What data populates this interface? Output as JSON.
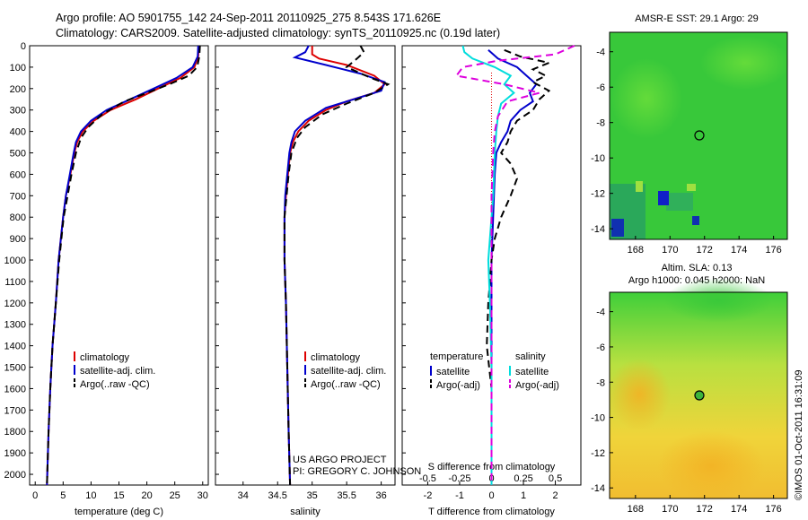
{
  "title": {
    "line1": "Argo profile: AO 5901755_142 24-Sep-2011 20110925_275 8.543S 171.626E",
    "line2": "Climatology: CARS2009. Satellite-adjusted climatology: synTS_20110925.nc (0.19d later)"
  },
  "credits": {
    "line1": "US ARGO PROJECT",
    "line2": "PI: GREGORY C. JOHNSON"
  },
  "stamp": "©IMOS 01-Oct-2011 16:31:09",
  "colors": {
    "climatology": "#dd0000",
    "satellite": "#0000cc",
    "argo": "#000000",
    "t_satellite": "#0000cc",
    "s_satellite": "#00dddd",
    "s_argo": "#dd00dd"
  },
  "chart_data": [
    {
      "type": "line",
      "id": "temperature",
      "xlabel": "temperature (deg C)",
      "ylabel": "",
      "xlim": [
        -1,
        31
      ],
      "ylim": [
        2050,
        0
      ],
      "xticks": [
        0,
        5,
        10,
        15,
        20,
        25,
        30
      ],
      "yticks": [
        0,
        100,
        200,
        300,
        400,
        500,
        600,
        700,
        800,
        900,
        1000,
        1100,
        1200,
        1300,
        1400,
        1500,
        1600,
        1700,
        1800,
        1900,
        2000
      ],
      "legend": [
        "climatology",
        "satellite-adj. clim.",
        "Argo(..raw -QC)"
      ],
      "series": [
        {
          "name": "climatology",
          "style": "solid",
          "color": "#dd0000",
          "points": [
            [
              29.3,
              0
            ],
            [
              29.2,
              50
            ],
            [
              28.5,
              100
            ],
            [
              26,
              150
            ],
            [
              22,
              200
            ],
            [
              18,
              250
            ],
            [
              13.5,
              300
            ],
            [
              10.5,
              350
            ],
            [
              8.5,
              400
            ],
            [
              7.5,
              450
            ],
            [
              7,
              500
            ],
            [
              6.3,
              600
            ],
            [
              5.5,
              700
            ],
            [
              5,
              800
            ],
            [
              4.6,
              900
            ],
            [
              4.2,
              1000
            ],
            [
              3.7,
              1200
            ],
            [
              3.1,
              1400
            ],
            [
              2.7,
              1600
            ],
            [
              2.4,
              1800
            ],
            [
              2.1,
              2050
            ]
          ]
        },
        {
          "name": "satellite-adj. clim.",
          "style": "solid",
          "color": "#0000cc",
          "points": [
            [
              29.2,
              0
            ],
            [
              29.1,
              50
            ],
            [
              28.2,
              100
            ],
            [
              25.3,
              150
            ],
            [
              21.2,
              200
            ],
            [
              17,
              250
            ],
            [
              12.8,
              300
            ],
            [
              10,
              350
            ],
            [
              8.2,
              400
            ],
            [
              7.3,
              450
            ],
            [
              6.9,
              500
            ],
            [
              6.2,
              600
            ],
            [
              5.5,
              700
            ],
            [
              5,
              800
            ],
            [
              4.6,
              900
            ],
            [
              4.2,
              1000
            ],
            [
              3.7,
              1200
            ],
            [
              3.1,
              1400
            ],
            [
              2.7,
              1600
            ],
            [
              2.4,
              1800
            ],
            [
              2.1,
              2050
            ]
          ]
        },
        {
          "name": "Argo(..raw -QC)",
          "style": "dash",
          "color": "#000000",
          "points": [
            [
              29.5,
              0
            ],
            [
              29.4,
              50
            ],
            [
              29,
              100
            ],
            [
              27.5,
              140
            ],
            [
              24,
              180
            ],
            [
              20,
              220
            ],
            [
              16,
              260
            ],
            [
              12,
              320
            ],
            [
              9.5,
              380
            ],
            [
              8.2,
              430
            ],
            [
              7.3,
              500
            ],
            [
              6.5,
              600
            ],
            [
              5.8,
              700
            ],
            [
              5.1,
              800
            ],
            [
              4.7,
              900
            ],
            [
              4.3,
              1000
            ],
            [
              3.7,
              1200
            ],
            [
              3.1,
              1400
            ],
            [
              2.7,
              1600
            ],
            [
              2.4,
              1800
            ],
            [
              2.1,
              2050
            ]
          ]
        }
      ]
    },
    {
      "type": "line",
      "id": "salinity",
      "xlabel": "salinity",
      "ylabel": "",
      "xlim": [
        33.6,
        36.2
      ],
      "ylim": [
        2050,
        0
      ],
      "xticks": [
        34,
        34.5,
        35,
        35.5,
        36
      ],
      "legend": [
        "climatology",
        "satellite-adj. clim.",
        "Argo(..raw -QC)"
      ],
      "series": [
        {
          "name": "climatology",
          "style": "solid",
          "color": "#dd0000",
          "points": [
            [
              35,
              0
            ],
            [
              35,
              40
            ],
            [
              35.1,
              60
            ],
            [
              35.5,
              90
            ],
            [
              35.9,
              140
            ],
            [
              36.05,
              180
            ],
            [
              35.9,
              220
            ],
            [
              35.5,
              260
            ],
            [
              35.2,
              300
            ],
            [
              34.95,
              350
            ],
            [
              34.8,
              400
            ],
            [
              34.72,
              450
            ],
            [
              34.68,
              500
            ],
            [
              34.65,
              600
            ],
            [
              34.62,
              700
            ],
            [
              34.6,
              800
            ],
            [
              34.6,
              900
            ],
            [
              34.6,
              1000
            ],
            [
              34.62,
              1200
            ],
            [
              34.64,
              1500
            ],
            [
              34.66,
              1800
            ],
            [
              34.68,
              2050
            ]
          ]
        },
        {
          "name": "satellite-adj. clim.",
          "style": "solid",
          "color": "#0000cc",
          "points": [
            [
              34.95,
              0
            ],
            [
              34.9,
              30
            ],
            [
              34.75,
              55
            ],
            [
              35.2,
              90
            ],
            [
              35.7,
              130
            ],
            [
              36.05,
              170
            ],
            [
              36,
              210
            ],
            [
              35.6,
              250
            ],
            [
              35.2,
              290
            ],
            [
              34.9,
              350
            ],
            [
              34.75,
              400
            ],
            [
              34.7,
              450
            ],
            [
              34.67,
              500
            ],
            [
              34.64,
              600
            ],
            [
              34.61,
              700
            ],
            [
              34.6,
              800
            ],
            [
              34.6,
              900
            ],
            [
              34.6,
              1000
            ],
            [
              34.62,
              1200
            ],
            [
              34.64,
              1500
            ],
            [
              34.66,
              1800
            ],
            [
              34.68,
              2050
            ]
          ]
        },
        {
          "name": "Argo(..raw -QC)",
          "style": "dash",
          "color": "#000000",
          "points": [
            [
              35.7,
              0
            ],
            [
              35.75,
              30
            ],
            [
              35.65,
              60
            ],
            [
              35.5,
              100
            ],
            [
              35.85,
              150
            ],
            [
              36.1,
              180
            ],
            [
              35.9,
              220
            ],
            [
              35.5,
              270
            ],
            [
              35.15,
              320
            ],
            [
              34.9,
              380
            ],
            [
              34.78,
              430
            ],
            [
              34.7,
              500
            ],
            [
              34.66,
              600
            ],
            [
              34.63,
              700
            ],
            [
              34.6,
              800
            ],
            [
              34.6,
              900
            ],
            [
              34.6,
              1000
            ],
            [
              34.62,
              1200
            ],
            [
              34.64,
              1500
            ],
            [
              34.66,
              1800
            ],
            [
              34.68,
              2050
            ]
          ]
        }
      ]
    },
    {
      "type": "line",
      "id": "difference",
      "xlabel": "T difference from climatology",
      "xlabel2": "S difference from climatology",
      "ylabel": "",
      "xlim": [
        -2.8,
        2.8
      ],
      "ylim": [
        2050,
        0
      ],
      "xticks_bottom": [
        -2,
        -1,
        0,
        1,
        2
      ],
      "xticks_top": [
        -0.5,
        -0.25,
        0,
        0.25,
        0.5
      ],
      "legend_headers": [
        "temperature",
        "salinity"
      ],
      "legend": [
        "satellite",
        "Argo(-adj)",
        "satellite",
        "Argo(-adj)"
      ],
      "series": [
        {
          "name": "temperature satellite",
          "style": "solid",
          "color": "#0000cc",
          "points": [
            [
              -0.1,
              20
            ],
            [
              0.2,
              60
            ],
            [
              0.8,
              100
            ],
            [
              1.1,
              140
            ],
            [
              1.4,
              180
            ],
            [
              1.2,
              220
            ],
            [
              1.3,
              260
            ],
            [
              0.9,
              300
            ],
            [
              0.6,
              350
            ],
            [
              0.5,
              400
            ],
            [
              0.3,
              450
            ],
            [
              0.15,
              500
            ],
            [
              0.1,
              600
            ],
            [
              0.05,
              800
            ],
            [
              0,
              1000
            ],
            [
              0,
              1500
            ],
            [
              0,
              2050
            ]
          ]
        },
        {
          "name": "temperature Argo(-adj)",
          "style": "dash",
          "color": "#000000",
          "points": [
            [
              0.4,
              20
            ],
            [
              0.9,
              50
            ],
            [
              1.8,
              80
            ],
            [
              1.3,
              110
            ],
            [
              1.7,
              140
            ],
            [
              1.3,
              170
            ],
            [
              1.8,
              210
            ],
            [
              1.5,
              250
            ],
            [
              1.3,
              300
            ],
            [
              0.8,
              350
            ],
            [
              0.6,
              400
            ],
            [
              0.5,
              450
            ],
            [
              0.3,
              500
            ],
            [
              0.6,
              550
            ],
            [
              0.8,
              620
            ],
            [
              0.6,
              700
            ],
            [
              0.3,
              800
            ],
            [
              0.1,
              900
            ],
            [
              0,
              1000
            ],
            [
              -0.1,
              1200
            ],
            [
              -0.15,
              1400
            ],
            [
              0,
              1600
            ],
            [
              0,
              2050
            ]
          ]
        },
        {
          "name": "salinity satellite",
          "style": "solid",
          "color": "#00dddd",
          "points": [
            [
              -0.9,
              0
            ],
            [
              -0.85,
              30
            ],
            [
              -0.6,
              60
            ],
            [
              0.1,
              100
            ],
            [
              0.6,
              140
            ],
            [
              0.4,
              180
            ],
            [
              0.7,
              220
            ],
            [
              0.3,
              270
            ],
            [
              0.2,
              330
            ],
            [
              0.15,
              400
            ],
            [
              0.1,
              500
            ],
            [
              0.05,
              700
            ],
            [
              -0.1,
              1000
            ],
            [
              -0.05,
              1200
            ],
            [
              0,
              1500
            ],
            [
              0,
              2050
            ]
          ]
        },
        {
          "name": "salinity Argo(-adj)",
          "style": "dash",
          "color": "#dd00dd",
          "points": [
            [
              2.6,
              0
            ],
            [
              2.0,
              40
            ],
            [
              0.2,
              70
            ],
            [
              -0.9,
              100
            ],
            [
              -1.1,
              140
            ],
            [
              0.4,
              180
            ],
            [
              1.5,
              220
            ],
            [
              0.5,
              260
            ],
            [
              0.2,
              330
            ],
            [
              0.1,
              400
            ],
            [
              0.05,
              500
            ],
            [
              0,
              700
            ],
            [
              0,
              2050
            ]
          ]
        }
      ]
    }
  ],
  "maps": [
    {
      "id": "sst",
      "title": "AMSR-E SST: 29.1 Argo: 29",
      "xticks": [
        168,
        170,
        172,
        174,
        176
      ],
      "yticks": [
        -4,
        -6,
        -8,
        -10,
        -12,
        -14
      ],
      "xlim": [
        166.5,
        176.8
      ],
      "ylim": [
        -14.6,
        -2.9
      ],
      "marker": [
        171.626,
        -8.543
      ]
    },
    {
      "id": "sla",
      "title_line1": "Altim. SLA: 0.13",
      "title_line2": "Argo h1000: 0.045 h2000: NaN",
      "xticks": [
        168,
        170,
        172,
        174,
        176
      ],
      "yticks": [
        -4,
        -6,
        -8,
        -10,
        -12,
        -14
      ],
      "xlim": [
        166.5,
        176.8
      ],
      "ylim": [
        -14.6,
        -2.9
      ],
      "marker": [
        171.626,
        -8.543
      ]
    }
  ]
}
